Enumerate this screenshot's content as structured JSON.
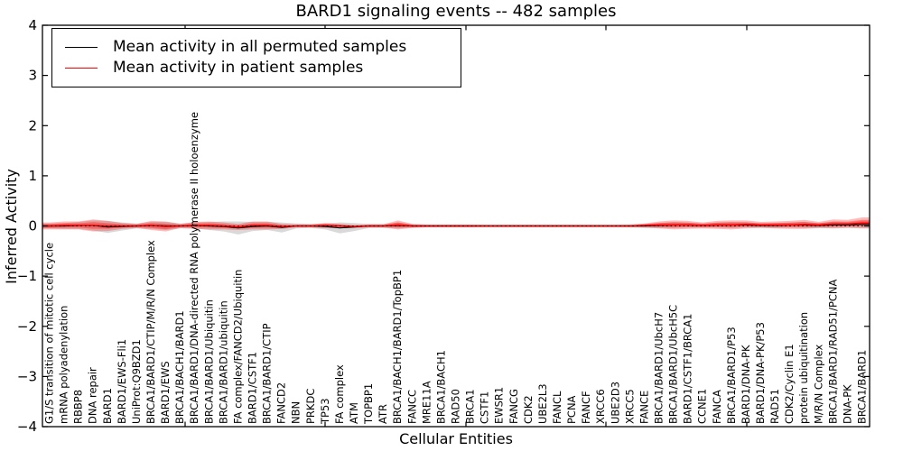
{
  "chart_data": {
    "type": "line",
    "title": "BARD1 signaling events -- 482 samples",
    "xlabel": "Cellular Entities",
    "ylabel": "Inferred Activity",
    "ylim": [
      -4,
      4
    ],
    "yticks": [
      4,
      3,
      2,
      1,
      0,
      -1,
      -2,
      -3,
      -4
    ],
    "grid": false,
    "legend_position": "upper left",
    "zero_line": true,
    "categories": [
      "G1/S transition of mitotic cell cycle",
      "mRNA polyadenylation",
      "RBBP8",
      "DNA repair",
      "BARD1",
      "BARD1/EWS-Fli1",
      "UniProt:Q9BZD1",
      "BRCA1/BARD1/CTIP/M/R/N Complex",
      "BARD1/EWS",
      "BRCA1/BACH1/BARD1",
      "BRCA1/BARD1/DNA-directed RNA polymerase II holoenzyme",
      "BRCA1/BARD1/Ubiquitin",
      "BRCA1/BARD1/ubiquitin",
      "FA complex/FANCD2/Ubiquitin",
      "BARD1/CSTF1",
      "BRCA1/BARD1/CTIP",
      "FANCD2",
      "NBN",
      "PRKDC",
      "TP53",
      "FA complex",
      "ATM",
      "TOPBP1",
      "ATR",
      "BRCA1/BACH1/BARD1/TopBP1",
      "FANCC",
      "MRE11A",
      "BRCA1/BACH1",
      "RAD50",
      "BRCA1",
      "CSTF1",
      "EWSR1",
      "FANCG",
      "CDK2",
      "UBE2L3",
      "FANCL",
      "PCNA",
      "FANCF",
      "XRCC6",
      "UBE2D3",
      "XRCC5",
      "FANCE",
      "BRCA1/BARD1/UbcH7",
      "BRCA1/BARD1/UbcH5C",
      "BARD1/CSTF1/BRCA1",
      "CCNE1",
      "FANCA",
      "BRCA1/BARD1/P53",
      "BARD1/DNA-PK",
      "BARD1/DNA-PK/P53",
      "RAD51",
      "CDK2/Cyclin E1",
      "protein ubiquitination",
      "M/R/N Complex",
      "BRCA1/BARD1/RAD51/PCNA",
      "DNA-PK",
      "BRCA1/BARD1"
    ],
    "series": [
      {
        "name": "Mean activity in all permuted samples",
        "color": "#000000",
        "band_color": "#000000",
        "mean": [
          0.0,
          0.0,
          0.01,
          0.01,
          -0.02,
          -0.01,
          0.0,
          0.01,
          0.0,
          0.0,
          0.01,
          0.0,
          -0.01,
          -0.04,
          -0.01,
          0.0,
          -0.03,
          0.0,
          0.0,
          -0.01,
          -0.04,
          -0.02,
          0.0,
          0.0,
          0.01,
          0.0,
          0.0,
          0.0,
          0.0,
          0.0,
          0.0,
          0.0,
          0.0,
          0.0,
          0.0,
          0.0,
          0.0,
          0.0,
          0.0,
          0.0,
          0.0,
          0.0,
          0.01,
          0.02,
          0.02,
          0.01,
          0.02,
          0.02,
          0.02,
          0.01,
          0.01,
          0.02,
          0.02,
          0.01,
          0.02,
          0.02,
          0.03
        ],
        "std": [
          0.05,
          0.06,
          0.07,
          0.1,
          0.12,
          0.08,
          0.05,
          0.07,
          0.08,
          0.05,
          0.06,
          0.08,
          0.1,
          0.13,
          0.09,
          0.08,
          0.1,
          0.05,
          0.04,
          0.06,
          0.11,
          0.08,
          0.04,
          0.04,
          0.06,
          0.03,
          0.03,
          0.03,
          0.03,
          0.03,
          0.03,
          0.03,
          0.03,
          0.03,
          0.03,
          0.03,
          0.03,
          0.03,
          0.03,
          0.03,
          0.03,
          0.04,
          0.05,
          0.06,
          0.05,
          0.04,
          0.05,
          0.06,
          0.05,
          0.04,
          0.05,
          0.05,
          0.06,
          0.05,
          0.06,
          0.05,
          0.07
        ]
      },
      {
        "name": "Mean activity in patient samples",
        "color": "#ff0000",
        "band_color": "#ff0000",
        "mean": [
          0.0,
          0.01,
          0.01,
          0.01,
          0.0,
          0.0,
          0.0,
          0.01,
          -0.01,
          0.0,
          0.01,
          0.01,
          0.0,
          -0.02,
          0.01,
          0.01,
          -0.01,
          0.0,
          0.0,
          0.01,
          0.0,
          -0.01,
          0.0,
          0.0,
          0.02,
          0.0,
          0.0,
          0.0,
          0.0,
          0.0,
          0.0,
          0.0,
          0.0,
          0.0,
          0.0,
          0.0,
          0.0,
          0.0,
          0.0,
          0.0,
          0.0,
          0.01,
          0.02,
          0.02,
          0.02,
          0.01,
          0.02,
          0.02,
          0.03,
          0.02,
          0.02,
          0.02,
          0.03,
          0.02,
          0.04,
          0.04,
          0.06
        ],
        "std": [
          0.07,
          0.08,
          0.08,
          0.12,
          0.1,
          0.06,
          0.04,
          0.09,
          0.1,
          0.04,
          0.07,
          0.08,
          0.07,
          0.06,
          0.08,
          0.08,
          0.05,
          0.03,
          0.03,
          0.05,
          0.04,
          0.03,
          0.03,
          0.03,
          0.09,
          0.04,
          0.025,
          0.025,
          0.025,
          0.025,
          0.02,
          0.02,
          0.02,
          0.02,
          0.02,
          0.02,
          0.02,
          0.02,
          0.02,
          0.02,
          0.025,
          0.04,
          0.07,
          0.09,
          0.08,
          0.06,
          0.08,
          0.09,
          0.08,
          0.06,
          0.07,
          0.08,
          0.09,
          0.06,
          0.09,
          0.08,
          0.11
        ]
      }
    ]
  }
}
